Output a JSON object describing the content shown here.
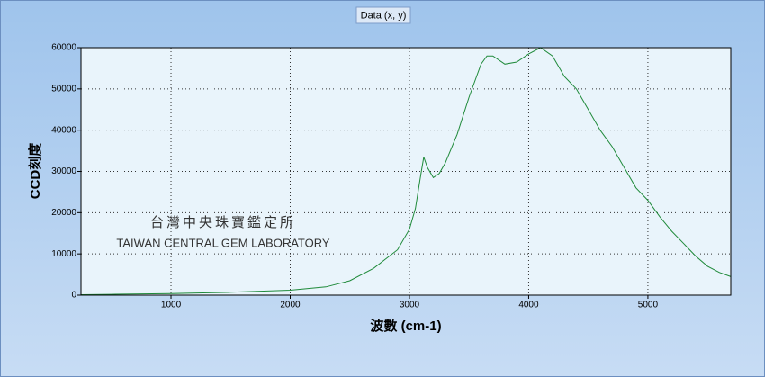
{
  "chart_data": {
    "type": "line",
    "xlabel": "波數 (cm-1)",
    "ylabel": "CCD刻度",
    "annotations": [
      "台灣中央珠寶鑑定所",
      "TAIWAN CENTRAL GEM LABORATORY"
    ],
    "x": [
      245,
      500,
      1000,
      1500,
      2000,
      2300,
      2500,
      2700,
      2900,
      3000,
      3050,
      3100,
      3120,
      3150,
      3200,
      3250,
      3300,
      3400,
      3500,
      3600,
      3650,
      3700,
      3800,
      3900,
      4000,
      4100,
      4200,
      4300,
      4400,
      4500,
      4600,
      4700,
      4800,
      4900,
      5000,
      5100,
      5200,
      5300,
      5400,
      5500,
      5600,
      5695
    ],
    "series": [
      {
        "name": "Data (x, y)",
        "color": "#1f8a3a",
        "values": [
          100,
          200,
          400,
          700,
          1200,
          2000,
          3500,
          6500,
          11000,
          16000,
          21000,
          30000,
          33500,
          31000,
          28500,
          29500,
          32000,
          39000,
          48000,
          56000,
          58000,
          58000,
          56000,
          56500,
          58500,
          60000,
          58000,
          53000,
          50000,
          45000,
          40000,
          36000,
          31000,
          26000,
          23000,
          19000,
          15500,
          12500,
          9500,
          7000,
          5500,
          4500
        ]
      }
    ],
    "xlim": [
      245,
      5695
    ],
    "ylim": [
      0,
      60000
    ],
    "xticks": [
      1000,
      2000,
      3000,
      4000,
      5000
    ],
    "yticks": [
      0,
      10000,
      20000,
      30000,
      40000,
      50000,
      60000
    ],
    "grid": true,
    "legend": "top"
  }
}
